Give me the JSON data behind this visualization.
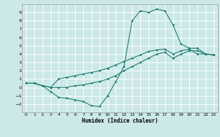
{
  "title": "",
  "xlabel": "Humidex (Indice chaleur)",
  "bg_color": "#cce8e8",
  "grid_color": "#ffffff",
  "line_color": "#1a7a6e",
  "xlim": [
    -0.5,
    23.5
  ],
  "ylim": [
    -3.0,
    10.0
  ],
  "xticks": [
    0,
    1,
    2,
    3,
    4,
    5,
    6,
    7,
    8,
    9,
    10,
    11,
    12,
    13,
    14,
    15,
    16,
    17,
    18,
    19,
    20,
    21,
    22,
    23
  ],
  "yticks": [
    -2,
    -1,
    0,
    1,
    2,
    3,
    4,
    5,
    6,
    7,
    8,
    9
  ],
  "line1_x": [
    0,
    1,
    2,
    3,
    4,
    5,
    6,
    7,
    8,
    9,
    10,
    11,
    12,
    13,
    14,
    15,
    16,
    17,
    18,
    19,
    20,
    21,
    22,
    23
  ],
  "line1_y": [
    0.5,
    0.5,
    0.2,
    0.0,
    1.0,
    1.2,
    1.4,
    1.6,
    1.8,
    2.0,
    2.3,
    2.7,
    3.1,
    3.5,
    3.9,
    4.3,
    4.5,
    4.6,
    4.0,
    4.4,
    4.6,
    4.0,
    4.0,
    3.9
  ],
  "line2_x": [
    0,
    1,
    2,
    3,
    4,
    5,
    6,
    7,
    8,
    9,
    10,
    11,
    12,
    13,
    14,
    15,
    16,
    17,
    18,
    19,
    20,
    21,
    22,
    23
  ],
  "line2_y": [
    0.5,
    0.5,
    0.2,
    -0.5,
    -1.2,
    -1.3,
    -1.5,
    -1.7,
    -2.2,
    -2.3,
    -1.0,
    0.7,
    2.5,
    8.0,
    9.2,
    9.0,
    9.4,
    9.2,
    7.5,
    5.2,
    4.7,
    4.7,
    4.0,
    3.9
  ],
  "line3_x": [
    0,
    1,
    2,
    3,
    4,
    5,
    6,
    7,
    8,
    9,
    10,
    11,
    12,
    13,
    14,
    15,
    16,
    17,
    18,
    19,
    20,
    21,
    22,
    23
  ],
  "line3_y": [
    0.5,
    0.5,
    0.2,
    0.0,
    0.0,
    0.0,
    0.2,
    0.3,
    0.5,
    0.7,
    1.0,
    1.4,
    2.0,
    2.5,
    3.0,
    3.5,
    4.0,
    4.2,
    3.5,
    4.0,
    4.4,
    4.4,
    4.0,
    3.9
  ]
}
